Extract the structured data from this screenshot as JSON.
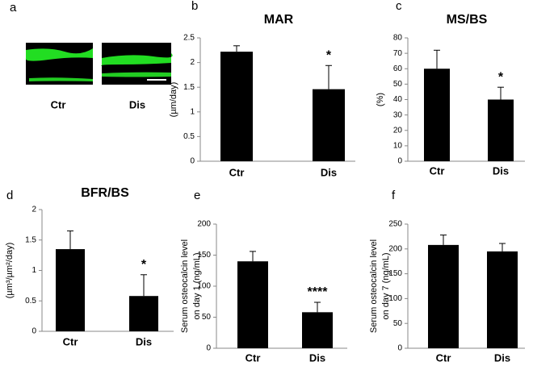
{
  "chart_data": [
    {
      "type": "image",
      "panel": "a",
      "categories": [
        "Ctr",
        "Dis"
      ]
    },
    {
      "type": "bar",
      "panel": "b",
      "title": "MAR",
      "ylabel": "(µm/day)",
      "categories": [
        "Ctr",
        "Dis"
      ],
      "values": [
        2.22,
        1.46
      ],
      "errors": [
        0.12,
        0.48
      ],
      "annotation_labels": [
        null,
        "*"
      ],
      "color": "#000000",
      "ylim": [
        0,
        2.5
      ],
      "yticks": [
        0,
        0.5,
        1,
        1.5,
        2,
        2.5
      ]
    },
    {
      "type": "bar",
      "panel": "c",
      "title": "MS/BS",
      "ylabel": "(%)",
      "categories": [
        "Ctr",
        "Dis"
      ],
      "values": [
        60,
        40
      ],
      "errors": [
        12,
        8
      ],
      "annotation_labels": [
        null,
        "*"
      ],
      "color": "#000000",
      "ylim": [
        0,
        80
      ],
      "yticks": [
        0,
        10,
        20,
        30,
        40,
        50,
        60,
        70,
        80
      ]
    },
    {
      "type": "bar",
      "panel": "d",
      "title": "BFR/BS",
      "ylabel": "(µm³/µm²/day)",
      "categories": [
        "Ctr",
        "Dis"
      ],
      "values": [
        1.35,
        0.58
      ],
      "errors": [
        0.3,
        0.35
      ],
      "annotation_labels": [
        null,
        "*"
      ],
      "color": "#000000",
      "ylim": [
        0,
        2
      ],
      "yticks": [
        0,
        0.5,
        1,
        1.5,
        2
      ]
    },
    {
      "type": "bar",
      "panel": "e",
      "ylabel": [
        "Serum osteocalcin level",
        "on day 1 (ng/mL)"
      ],
      "categories": [
        "Ctr",
        "Dis"
      ],
      "values": [
        140,
        58
      ],
      "errors": [
        16,
        16
      ],
      "annotation_labels": [
        null,
        "****"
      ],
      "color": "#000000",
      "ylim": [
        0,
        200
      ],
      "yticks": [
        0,
        50,
        100,
        150,
        200
      ]
    },
    {
      "type": "bar",
      "panel": "f",
      "ylabel": [
        "Serum osteocalcin level",
        "on day 7 (ng/mL)"
      ],
      "categories": [
        "Ctr",
        "Dis"
      ],
      "values": [
        208,
        195
      ],
      "errors": [
        20,
        16
      ],
      "color": "#000000",
      "ylim": [
        0,
        250
      ],
      "yticks": [
        0,
        50,
        100,
        150,
        200,
        250
      ]
    }
  ]
}
